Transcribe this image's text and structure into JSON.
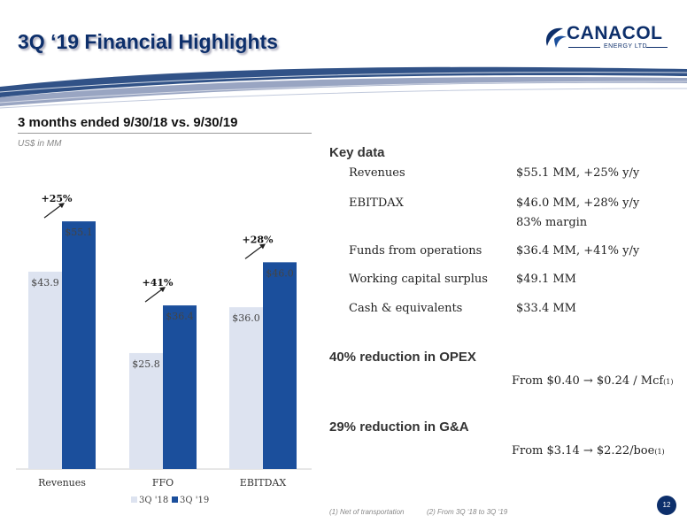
{
  "header": {
    "title": "3Q ‘19 Financial Highlights",
    "logo_word": "CANACOL",
    "logo_sub": "ENERGY LTD.",
    "brand_color": "#0d2f6b"
  },
  "subtitle": "3 months ended 9/30/18 vs. 9/30/19",
  "units": "US$ in MM",
  "chart_data": {
    "type": "bar",
    "categories": [
      "Revenues",
      "FFO",
      "EBITDAX"
    ],
    "series": [
      {
        "name": "3Q '18",
        "values": [
          43.9,
          25.8,
          36.0
        ],
        "labels": [
          "$43.9",
          "$25.8",
          "$36.0"
        ],
        "color": "#dde3f0"
      },
      {
        "name": "3Q '19",
        "values": [
          55.1,
          36.4,
          46.0
        ],
        "labels": [
          "$55.1",
          "$36.4",
          "$46.0"
        ],
        "color": "#1b4f9c"
      }
    ],
    "growth": [
      "+25%",
      "+41%",
      "+28%"
    ],
    "ylim": [
      0,
      63
    ],
    "legend": "bottom",
    "grid": false
  },
  "key_data": {
    "title": "Key data",
    "rows": [
      {
        "label": "Revenues",
        "value": "$55.1 MM, +25% y/y"
      },
      {
        "label": "EBITDAX",
        "value": "$46.0 MM, +28% y/y",
        "value2": "83% margin"
      },
      {
        "label": "Funds from operations",
        "value": "$36.4 MM, +41% y/y"
      },
      {
        "label": "Working capital surplus",
        "value": "$49.1 MM"
      },
      {
        "label": "Cash & equivalents",
        "value": "$33.4 MM"
      }
    ]
  },
  "opex": {
    "title": "40% reduction in OPEX",
    "text": "From $0.40 → $0.24 / Mcf",
    "note_mark": "(1)"
  },
  "ga": {
    "title": "29% reduction in G&A",
    "text": "From $3.14 → $2.22/boe",
    "note_mark": "(1)"
  },
  "footnotes": {
    "one": "(1) Net of transportation",
    "two": "(2) From 3Q ‘18 to 3Q ‘19"
  },
  "page_number": "12"
}
